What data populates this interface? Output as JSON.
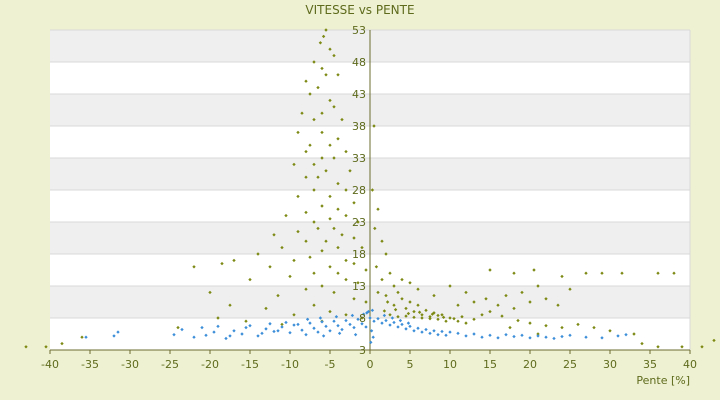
{
  "chart_data": {
    "type": "scatter",
    "title": "VITESSE vs PENTE",
    "xlabel": "Pente [%]",
    "ylabel": "",
    "xlim": [
      -40,
      40
    ],
    "ylim": [
      3,
      53
    ],
    "x_ticks": [
      -40,
      -35,
      -30,
      -25,
      -20,
      -15,
      -10,
      -5,
      0,
      5,
      10,
      15,
      20,
      25,
      30,
      35,
      40
    ],
    "y_ticks": [
      3,
      8,
      13,
      18,
      23,
      28,
      33,
      38,
      43,
      48,
      53
    ],
    "x_tick_labels": [
      "-40",
      "-35",
      "-30",
      "-25",
      "-20",
      "-15",
      "-10",
      "-5",
      "0",
      "5",
      "10",
      "15",
      "20",
      "25",
      "30",
      "35",
      "40"
    ],
    "y_tick_labels": [
      "3",
      "8",
      "13",
      "18",
      "23",
      "28",
      "33",
      "38",
      "43",
      "48",
      "53"
    ],
    "grid": true,
    "legend": "none",
    "colors": {
      "background": "#eff2d2",
      "plot_background": "#ffffff",
      "band": "#efefef",
      "gridline": "#d8d8d8",
      "axis_text": "#5e6a1c",
      "axis_line": "#6b6b30",
      "series_1": "#7d8a14",
      "series_2": "#3d8fd9"
    },
    "series": [
      {
        "name": "",
        "marker": "diamond",
        "color": "#7d8a14",
        "points": [
          [
            -5.5,
            53
          ],
          [
            -5.8,
            52
          ],
          [
            -6.2,
            51
          ],
          [
            -5,
            50
          ],
          [
            -4.5,
            49
          ],
          [
            -7,
            48
          ],
          [
            -6,
            47
          ],
          [
            -5.5,
            46
          ],
          [
            -8,
            45
          ],
          [
            -4,
            46
          ],
          [
            -6.5,
            44
          ],
          [
            -7.5,
            43
          ],
          [
            -5,
            42
          ],
          [
            -4.5,
            41
          ],
          [
            -6,
            40
          ],
          [
            -8.5,
            40
          ],
          [
            -7,
            39
          ],
          [
            -3.5,
            39
          ],
          [
            -9,
            37
          ],
          [
            -6,
            37
          ],
          [
            -4,
            36
          ],
          [
            -5,
            35
          ],
          [
            -7.5,
            35
          ],
          [
            -8,
            34
          ],
          [
            -3,
            34
          ],
          [
            -6,
            33
          ],
          [
            -4.5,
            33
          ],
          [
            -7,
            32
          ],
          [
            -9.5,
            32
          ],
          [
            -2.5,
            31
          ],
          [
            -5.5,
            31
          ],
          [
            -6.5,
            30
          ],
          [
            -8,
            30
          ],
          [
            -4,
            29
          ],
          [
            -3,
            28
          ],
          [
            -7,
            28
          ],
          [
            -9,
            27
          ],
          [
            -5,
            27
          ],
          [
            -2,
            26
          ],
          [
            -6,
            25.5
          ],
          [
            -4,
            25
          ],
          [
            -8,
            24.5
          ],
          [
            -10.5,
            24
          ],
          [
            -3,
            24
          ],
          [
            -5,
            23.5
          ],
          [
            -7,
            23
          ],
          [
            -1.5,
            23
          ],
          [
            -4.5,
            22
          ],
          [
            -6.5,
            22
          ],
          [
            -9,
            21.5
          ],
          [
            -12,
            21
          ],
          [
            -3.5,
            21
          ],
          [
            -2,
            20.5
          ],
          [
            -5.5,
            20
          ],
          [
            -8,
            20
          ],
          [
            -11,
            19
          ],
          [
            -4,
            19
          ],
          [
            -1,
            19
          ],
          [
            -6,
            18.5
          ],
          [
            -14,
            18
          ],
          [
            -7.5,
            17.5
          ],
          [
            -3,
            17
          ],
          [
            -9.5,
            17
          ],
          [
            -17,
            17
          ],
          [
            -2,
            16.5
          ],
          [
            -5,
            16
          ],
          [
            -12.5,
            16
          ],
          [
            -0.5,
            15.5
          ],
          [
            -7,
            15
          ],
          [
            -4,
            15
          ],
          [
            -18.5,
            16.5
          ],
          [
            -22,
            16
          ],
          [
            -10,
            14.5
          ],
          [
            -3,
            14
          ],
          [
            -1.5,
            13.5
          ],
          [
            -6,
            13
          ],
          [
            -15,
            14
          ],
          [
            -8,
            12.5
          ],
          [
            -4.5,
            12
          ],
          [
            -20,
            12
          ],
          [
            -11.5,
            11.5
          ],
          [
            -2,
            11
          ],
          [
            -0.5,
            10.5
          ],
          [
            -17.5,
            10
          ],
          [
            -7,
            10
          ],
          [
            -13,
            9.5
          ],
          [
            -5,
            9
          ],
          [
            -3,
            8.5
          ],
          [
            -9.5,
            8.5
          ],
          [
            -19,
            8
          ],
          [
            -1,
            8
          ],
          [
            -6,
            7.5
          ],
          [
            -15.5,
            7.5
          ],
          [
            -11,
            7
          ],
          [
            -24,
            6.5
          ],
          [
            -36,
            5
          ],
          [
            -38.5,
            4
          ],
          [
            -40.5,
            3.5
          ],
          [
            -43,
            3.5
          ],
          [
            0.5,
            38
          ],
          [
            0.3,
            28
          ],
          [
            1,
            25
          ],
          [
            0.6,
            22
          ],
          [
            1.5,
            20
          ],
          [
            2,
            18
          ],
          [
            0.8,
            16
          ],
          [
            2.5,
            15
          ],
          [
            1.5,
            14
          ],
          [
            3,
            13
          ],
          [
            3.5,
            12
          ],
          [
            2,
            11.5
          ],
          [
            4,
            11
          ],
          [
            5,
            10.5
          ],
          [
            3,
            10
          ],
          [
            6,
            10
          ],
          [
            4.5,
            9.5
          ],
          [
            7,
            9.2
          ],
          [
            5.5,
            9
          ],
          [
            8,
            8.8
          ],
          [
            6.5,
            8.5
          ],
          [
            9,
            8.5
          ],
          [
            7.5,
            8.2
          ],
          [
            10,
            8
          ],
          [
            8.5,
            7.8
          ],
          [
            11,
            7.5
          ],
          [
            9.5,
            7.5
          ],
          [
            12,
            7.2
          ],
          [
            2.5,
            8.5
          ],
          [
            3.5,
            8.2
          ],
          [
            4.5,
            8.3
          ],
          [
            5.5,
            8.1
          ],
          [
            6.5,
            8
          ],
          [
            7.5,
            7.9
          ],
          [
            8.5,
            8.4
          ],
          [
            1.8,
            9.1
          ],
          [
            3.2,
            9.3
          ],
          [
            4.8,
            8.7
          ],
          [
            6.2,
            8.9
          ],
          [
            7.8,
            8.6
          ],
          [
            9.2,
            8.1
          ],
          [
            10.5,
            7.9
          ],
          [
            11.5,
            8.2
          ],
          [
            13,
            7.8
          ],
          [
            14,
            8.5
          ],
          [
            15,
            9
          ],
          [
            16,
            10
          ],
          [
            14.5,
            11
          ],
          [
            18,
            9.5
          ],
          [
            17,
            11.5
          ],
          [
            20,
            10.5
          ],
          [
            19,
            12
          ],
          [
            22,
            11
          ],
          [
            23.5,
            10
          ],
          [
            15,
            15.5
          ],
          [
            18,
            15
          ],
          [
            20.5,
            15.5
          ],
          [
            24,
            14.5
          ],
          [
            27,
            15
          ],
          [
            29,
            15
          ],
          [
            31.5,
            15
          ],
          [
            36,
            15
          ],
          [
            38,
            15
          ],
          [
            21,
            13
          ],
          [
            25,
            12.5
          ],
          [
            26,
            7
          ],
          [
            28,
            6.5
          ],
          [
            30,
            6
          ],
          [
            33,
            5.5
          ],
          [
            34,
            4
          ],
          [
            36,
            3.5
          ],
          [
            39,
            3.5
          ],
          [
            41.5,
            3.5
          ],
          [
            43,
            4.5
          ],
          [
            10,
            13
          ],
          [
            12,
            12
          ],
          [
            6,
            12.5
          ],
          [
            8,
            11.5
          ],
          [
            11,
            10
          ],
          [
            13,
            10.5
          ],
          [
            4,
            14
          ],
          [
            5,
            13.5
          ],
          [
            1,
            12
          ],
          [
            2.2,
            10.5
          ],
          [
            16.5,
            8.3
          ],
          [
            18.5,
            7.6
          ],
          [
            20,
            7.2
          ],
          [
            22,
            6.8
          ],
          [
            24,
            6.5
          ],
          [
            17.5,
            6.5
          ],
          [
            21,
            5.5
          ]
        ]
      },
      {
        "name": "",
        "marker": "diamond",
        "color": "#3d8fd9",
        "points": [
          [
            -35.5,
            5
          ],
          [
            -32,
            5.2
          ],
          [
            -31.5,
            5.8
          ],
          [
            -24.5,
            5.4
          ],
          [
            -23.5,
            6.2
          ],
          [
            -22,
            5
          ],
          [
            -21,
            6.5
          ],
          [
            -19.5,
            5.8
          ],
          [
            -18,
            4.8
          ],
          [
            -17,
            6
          ],
          [
            -16,
            5.5
          ],
          [
            -15,
            6.8
          ],
          [
            -14,
            5.2
          ],
          [
            -13,
            6.3
          ],
          [
            -12,
            5.9
          ],
          [
            -11,
            6.6
          ],
          [
            -10,
            5.7
          ],
          [
            -9,
            7
          ],
          [
            -8.5,
            6.1
          ],
          [
            -8,
            5.4
          ],
          [
            -7.5,
            7.2
          ],
          [
            -7,
            6.4
          ],
          [
            -6.5,
            5.8
          ],
          [
            -6,
            7.4
          ],
          [
            -5.5,
            6.7
          ],
          [
            -5,
            6
          ],
          [
            -4.5,
            7.5
          ],
          [
            -4,
            6.8
          ],
          [
            -3.5,
            6.2
          ],
          [
            -3,
            7.6
          ],
          [
            -2.5,
            7
          ],
          [
            -2,
            6.5
          ],
          [
            -1.5,
            7.8
          ],
          [
            -1,
            7.1
          ],
          [
            -0.5,
            6.6
          ],
          [
            0,
            8
          ],
          [
            -9.5,
            6.9
          ],
          [
            -11.5,
            6
          ],
          [
            -13.5,
            5.6
          ],
          [
            -15.5,
            6.5
          ],
          [
            -17.5,
            5.2
          ],
          [
            -19,
            6.7
          ],
          [
            -20.5,
            5.3
          ],
          [
            -12.5,
            7.1
          ],
          [
            -10.5,
            7.3
          ],
          [
            -6.2,
            8
          ],
          [
            -4.2,
            8.2
          ],
          [
            -2.2,
            8.4
          ],
          [
            -0.8,
            8.6
          ],
          [
            -7.8,
            7.8
          ],
          [
            -3.8,
            5.6
          ],
          [
            -1.8,
            5.4
          ],
          [
            -5.8,
            5.2
          ],
          [
            0.5,
            7.5
          ],
          [
            1,
            7.9
          ],
          [
            1.5,
            7.2
          ],
          [
            2,
            7.6
          ],
          [
            2.5,
            6.9
          ],
          [
            3,
            7.3
          ],
          [
            3.5,
            6.6
          ],
          [
            4,
            7
          ],
          [
            4.5,
            6.3
          ],
          [
            5,
            6.7
          ],
          [
            5.5,
            6
          ],
          [
            6,
            6.4
          ],
          [
            6.5,
            5.8
          ],
          [
            7,
            6.2
          ],
          [
            7.5,
            5.6
          ],
          [
            8,
            6
          ],
          [
            8.5,
            5.4
          ],
          [
            9,
            5.9
          ],
          [
            9.5,
            5.3
          ],
          [
            10,
            5.8
          ],
          [
            11,
            5.6
          ],
          [
            12,
            5.2
          ],
          [
            13,
            5.5
          ],
          [
            14,
            5
          ],
          [
            15,
            5.3
          ],
          [
            16,
            4.9
          ],
          [
            17,
            5.4
          ],
          [
            18,
            5.1
          ],
          [
            19,
            5.3
          ],
          [
            20,
            4.9
          ],
          [
            21,
            5.2
          ],
          [
            22,
            5
          ],
          [
            23,
            4.8
          ],
          [
            24,
            5.1
          ],
          [
            25,
            5.3
          ],
          [
            27,
            5
          ],
          [
            29,
            4.9
          ],
          [
            31,
            5.2
          ],
          [
            32,
            5.4
          ],
          [
            1.8,
            8.4
          ],
          [
            2.8,
            8
          ],
          [
            3.8,
            7.6
          ],
          [
            4.8,
            7.2
          ],
          [
            0.2,
            6
          ],
          [
            0.4,
            5
          ],
          [
            0.1,
            4.2
          ],
          [
            -0.2,
            9
          ],
          [
            -0.4,
            8.8
          ],
          [
            0.3,
            9.2
          ]
        ]
      }
    ]
  }
}
